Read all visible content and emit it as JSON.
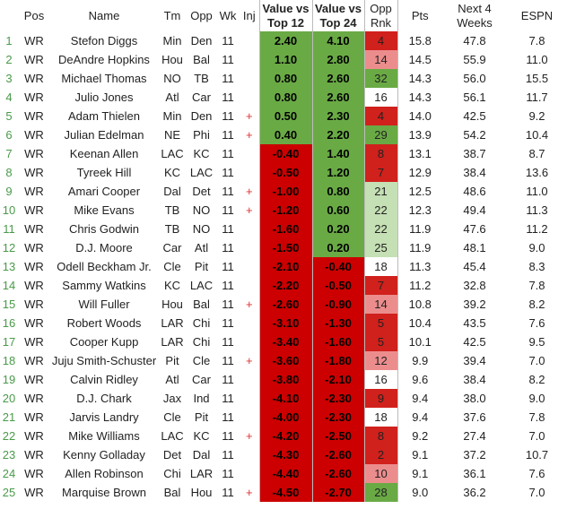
{
  "columns": {
    "idx": "",
    "pos": "Pos",
    "name": "Name",
    "tm": "Tm",
    "opp": "Opp",
    "wk": "Wk",
    "inj": "Inj",
    "v12": "Value vs Top 12",
    "v24": "Value vs Top 24",
    "rnk": "Opp Rnk",
    "pts": "Pts",
    "next4": "Next 4 Weeks",
    "espn": "ESPN"
  },
  "rows": [
    {
      "idx": "1",
      "pos": "WR",
      "name": "Stefon Diggs",
      "tm": "Min",
      "opp": "Den",
      "wk": "11",
      "inj": "",
      "v12": "2.40",
      "v24": "4.10",
      "rnk": "4",
      "pts": "15.8",
      "next4": "47.8",
      "espn": "7.8"
    },
    {
      "idx": "2",
      "pos": "WR",
      "name": "DeAndre Hopkins",
      "tm": "Hou",
      "opp": "Bal",
      "wk": "11",
      "inj": "",
      "v12": "1.10",
      "v24": "2.80",
      "rnk": "14",
      "pts": "14.5",
      "next4": "55.9",
      "espn": "11.0"
    },
    {
      "idx": "3",
      "pos": "WR",
      "name": "Michael Thomas",
      "tm": "NO",
      "opp": "TB",
      "wk": "11",
      "inj": "",
      "v12": "0.80",
      "v24": "2.60",
      "rnk": "32",
      "pts": "14.3",
      "next4": "56.0",
      "espn": "15.5"
    },
    {
      "idx": "4",
      "pos": "WR",
      "name": "Julio Jones",
      "tm": "Atl",
      "opp": "Car",
      "wk": "11",
      "inj": "",
      "v12": "0.80",
      "v24": "2.60",
      "rnk": "16",
      "pts": "14.3",
      "next4": "56.1",
      "espn": "11.7"
    },
    {
      "idx": "5",
      "pos": "WR",
      "name": "Adam Thielen",
      "tm": "Min",
      "opp": "Den",
      "wk": "11",
      "inj": "+",
      "v12": "0.50",
      "v24": "2.30",
      "rnk": "4",
      "pts": "14.0",
      "next4": "42.5",
      "espn": "9.2"
    },
    {
      "idx": "6",
      "pos": "WR",
      "name": "Julian Edelman",
      "tm": "NE",
      "opp": "Phi",
      "wk": "11",
      "inj": "+",
      "v12": "0.40",
      "v24": "2.20",
      "rnk": "29",
      "pts": "13.9",
      "next4": "54.2",
      "espn": "10.4"
    },
    {
      "idx": "7",
      "pos": "WR",
      "name": "Keenan Allen",
      "tm": "LAC",
      "opp": "KC",
      "wk": "11",
      "inj": "",
      "v12": "-0.40",
      "v24": "1.40",
      "rnk": "8",
      "pts": "13.1",
      "next4": "38.7",
      "espn": "8.7"
    },
    {
      "idx": "8",
      "pos": "WR",
      "name": "Tyreek Hill",
      "tm": "KC",
      "opp": "LAC",
      "wk": "11",
      "inj": "",
      "v12": "-0.50",
      "v24": "1.20",
      "rnk": "7",
      "pts": "12.9",
      "next4": "38.4",
      "espn": "13.6"
    },
    {
      "idx": "9",
      "pos": "WR",
      "name": "Amari Cooper",
      "tm": "Dal",
      "opp": "Det",
      "wk": "11",
      "inj": "+",
      "v12": "-1.00",
      "v24": "0.80",
      "rnk": "21",
      "pts": "12.5",
      "next4": "48.6",
      "espn": "11.0"
    },
    {
      "idx": "10",
      "pos": "WR",
      "name": "Mike Evans",
      "tm": "TB",
      "opp": "NO",
      "wk": "11",
      "inj": "+",
      "v12": "-1.20",
      "v24": "0.60",
      "rnk": "22",
      "pts": "12.3",
      "next4": "49.4",
      "espn": "11.3"
    },
    {
      "idx": "11",
      "pos": "WR",
      "name": "Chris Godwin",
      "tm": "TB",
      "opp": "NO",
      "wk": "11",
      "inj": "",
      "v12": "-1.60",
      "v24": "0.20",
      "rnk": "22",
      "pts": "11.9",
      "next4": "47.6",
      "espn": "11.2"
    },
    {
      "idx": "12",
      "pos": "WR",
      "name": "D.J. Moore",
      "tm": "Car",
      "opp": "Atl",
      "wk": "11",
      "inj": "",
      "v12": "-1.50",
      "v24": "0.20",
      "rnk": "25",
      "pts": "11.9",
      "next4": "48.1",
      "espn": "9.0"
    },
    {
      "idx": "13",
      "pos": "WR",
      "name": "Odell Beckham Jr.",
      "tm": "Cle",
      "opp": "Pit",
      "wk": "11",
      "inj": "",
      "v12": "-2.10",
      "v24": "-0.40",
      "rnk": "18",
      "pts": "11.3",
      "next4": "45.4",
      "espn": "8.3"
    },
    {
      "idx": "14",
      "pos": "WR",
      "name": "Sammy Watkins",
      "tm": "KC",
      "opp": "LAC",
      "wk": "11",
      "inj": "",
      "v12": "-2.20",
      "v24": "-0.50",
      "rnk": "7",
      "pts": "11.2",
      "next4": "32.8",
      "espn": "7.8"
    },
    {
      "idx": "15",
      "pos": "WR",
      "name": "Will Fuller",
      "tm": "Hou",
      "opp": "Bal",
      "wk": "11",
      "inj": "+",
      "v12": "-2.60",
      "v24": "-0.90",
      "rnk": "14",
      "pts": "10.8",
      "next4": "39.2",
      "espn": "8.2"
    },
    {
      "idx": "16",
      "pos": "WR",
      "name": "Robert Woods",
      "tm": "LAR",
      "opp": "Chi",
      "wk": "11",
      "inj": "",
      "v12": "-3.10",
      "v24": "-1.30",
      "rnk": "5",
      "pts": "10.4",
      "next4": "43.5",
      "espn": "7.6"
    },
    {
      "idx": "17",
      "pos": "WR",
      "name": "Cooper Kupp",
      "tm": "LAR",
      "opp": "Chi",
      "wk": "11",
      "inj": "",
      "v12": "-3.40",
      "v24": "-1.60",
      "rnk": "5",
      "pts": "10.1",
      "next4": "42.5",
      "espn": "9.5"
    },
    {
      "idx": "18",
      "pos": "WR",
      "name": "Juju Smith-Schuster",
      "tm": "Pit",
      "opp": "Cle",
      "wk": "11",
      "inj": "+",
      "v12": "-3.60",
      "v24": "-1.80",
      "rnk": "12",
      "pts": "9.9",
      "next4": "39.4",
      "espn": "7.0"
    },
    {
      "idx": "19",
      "pos": "WR",
      "name": "Calvin Ridley",
      "tm": "Atl",
      "opp": "Car",
      "wk": "11",
      "inj": "",
      "v12": "-3.80",
      "v24": "-2.10",
      "rnk": "16",
      "pts": "9.6",
      "next4": "38.4",
      "espn": "8.2"
    },
    {
      "idx": "20",
      "pos": "WR",
      "name": "D.J. Chark",
      "tm": "Jax",
      "opp": "Ind",
      "wk": "11",
      "inj": "",
      "v12": "-4.10",
      "v24": "-2.30",
      "rnk": "9",
      "pts": "9.4",
      "next4": "38.0",
      "espn": "9.0"
    },
    {
      "idx": "21",
      "pos": "WR",
      "name": "Jarvis Landry",
      "tm": "Cle",
      "opp": "Pit",
      "wk": "11",
      "inj": "",
      "v12": "-4.00",
      "v24": "-2.30",
      "rnk": "18",
      "pts": "9.4",
      "next4": "37.6",
      "espn": "7.8"
    },
    {
      "idx": "22",
      "pos": "WR",
      "name": "Mike Williams",
      "tm": "LAC",
      "opp": "KC",
      "wk": "11",
      "inj": "+",
      "v12": "-4.20",
      "v24": "-2.50",
      "rnk": "8",
      "pts": "9.2",
      "next4": "27.4",
      "espn": "7.0"
    },
    {
      "idx": "23",
      "pos": "WR",
      "name": "Kenny Golladay",
      "tm": "Det",
      "opp": "Dal",
      "wk": "11",
      "inj": "",
      "v12": "-4.30",
      "v24": "-2.60",
      "rnk": "2",
      "pts": "9.1",
      "next4": "37.2",
      "espn": "10.7"
    },
    {
      "idx": "24",
      "pos": "WR",
      "name": "Allen Robinson",
      "tm": "Chi",
      "opp": "LAR",
      "wk": "11",
      "inj": "",
      "v12": "-4.40",
      "v24": "-2.60",
      "rnk": "10",
      "pts": "9.1",
      "next4": "36.1",
      "espn": "7.6"
    },
    {
      "idx": "25",
      "pos": "WR",
      "name": "Marquise Brown",
      "tm": "Bal",
      "opp": "Hou",
      "wk": "11",
      "inj": "+",
      "v12": "-4.50",
      "v24": "-2.70",
      "rnk": "28",
      "pts": "9.0",
      "next4": "36.2",
      "espn": "7.0"
    }
  ],
  "colors": {
    "value_positive": "#6aaa45",
    "value_negative": "#cc0000",
    "value_text": "#000000",
    "rank_scale": [
      "#d0211c",
      "#ec8d8d",
      "#ffffff",
      "#c5e0b4",
      "#6aaa45"
    ],
    "index_text": "#4a9a4a",
    "injury_marker": "#dd3333"
  }
}
